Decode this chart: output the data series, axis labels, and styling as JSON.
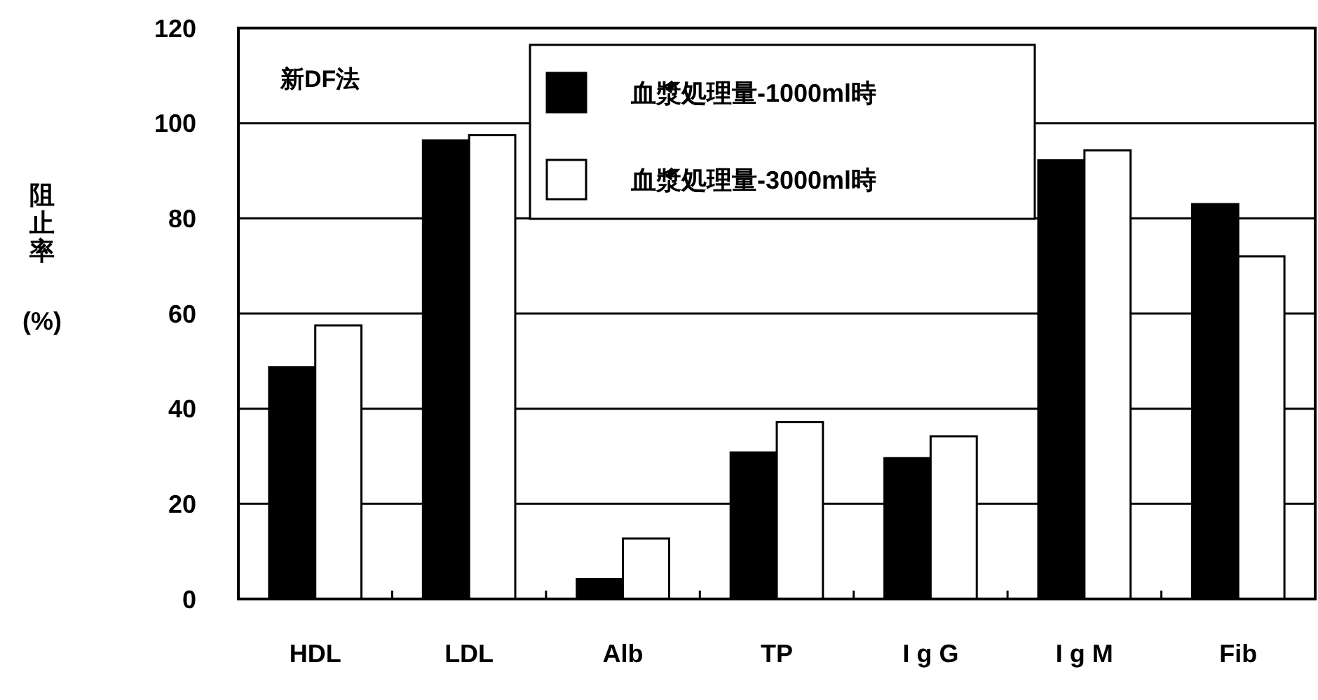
{
  "chart_data": {
    "type": "bar",
    "ylabel": "阻止率(%)",
    "annotations": [
      "新DF法"
    ],
    "categories": [
      "HDL",
      "LDL",
      "Alb",
      "TP",
      "I g G",
      "I g M",
      "Fib"
    ],
    "series": [
      {
        "name": "血漿処理量-1000ml時",
        "color": "#000000",
        "values": [
          48.7,
          96.4,
          4.2,
          30.8,
          29.6,
          92.2,
          83
        ]
      },
      {
        "name": "血漿処理量-3000ml時",
        "color": "#ffffff",
        "values": [
          57.5,
          97.5,
          12.7,
          37.2,
          34.2,
          94.3,
          72
        ]
      }
    ],
    "ylim": [
      0,
      120
    ],
    "yticks": [
      0,
      20,
      40,
      60,
      80,
      100,
      120
    ],
    "grid": "y",
    "legend": "top"
  }
}
